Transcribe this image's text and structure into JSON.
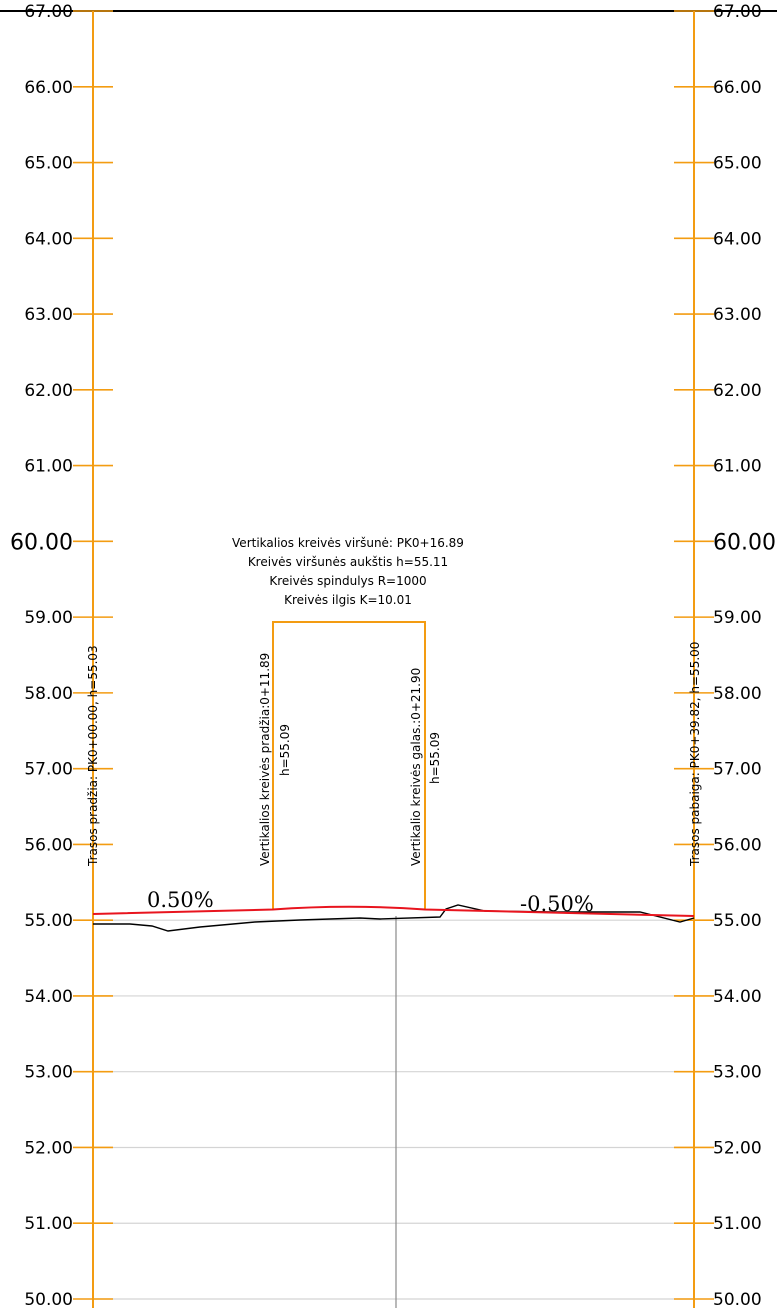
{
  "elevation_axis": {
    "labels": [
      "67.00",
      "66.00",
      "65.00",
      "64.00",
      "63.00",
      "62.00",
      "61.00",
      "60.00",
      "59.00",
      "58.00",
      "57.00",
      "56.00",
      "55.00",
      "54.00",
      "53.00",
      "52.00",
      "51.00",
      "50.00"
    ],
    "major_label": "60.00",
    "range": [
      50,
      67
    ],
    "grid_lines": [
      50,
      51,
      52,
      53,
      54,
      55
    ]
  },
  "colors": {
    "axis": "#f39c12",
    "design_line": "#e8141e",
    "ground_line": "#000000",
    "grid": "#d4d4d4",
    "center_line": "#8a8a8a"
  },
  "route": {
    "start_label": "Trasos pradžia: PK0+00.00, h=55.03",
    "end_label": "Trasos pabaiga: PK0+39.82, h=55.00"
  },
  "vertical_curve": {
    "summary": [
      "Vertikalios kreivės viršunė: PK0+16.89",
      "Kreivės viršunės aukštis h=55.11",
      "Kreivės spindulys R=1000",
      "Kreivės ilgis K=10.01"
    ],
    "start_label": "Vertikalios kreivės pradžia:0+11.89",
    "start_h": "h=55.09",
    "end_label": "Vertikalio kreivės galas.:0+21.90",
    "end_h": "h=55.09"
  },
  "grades": {
    "left": "0.50%",
    "right": "-0.50%"
  }
}
